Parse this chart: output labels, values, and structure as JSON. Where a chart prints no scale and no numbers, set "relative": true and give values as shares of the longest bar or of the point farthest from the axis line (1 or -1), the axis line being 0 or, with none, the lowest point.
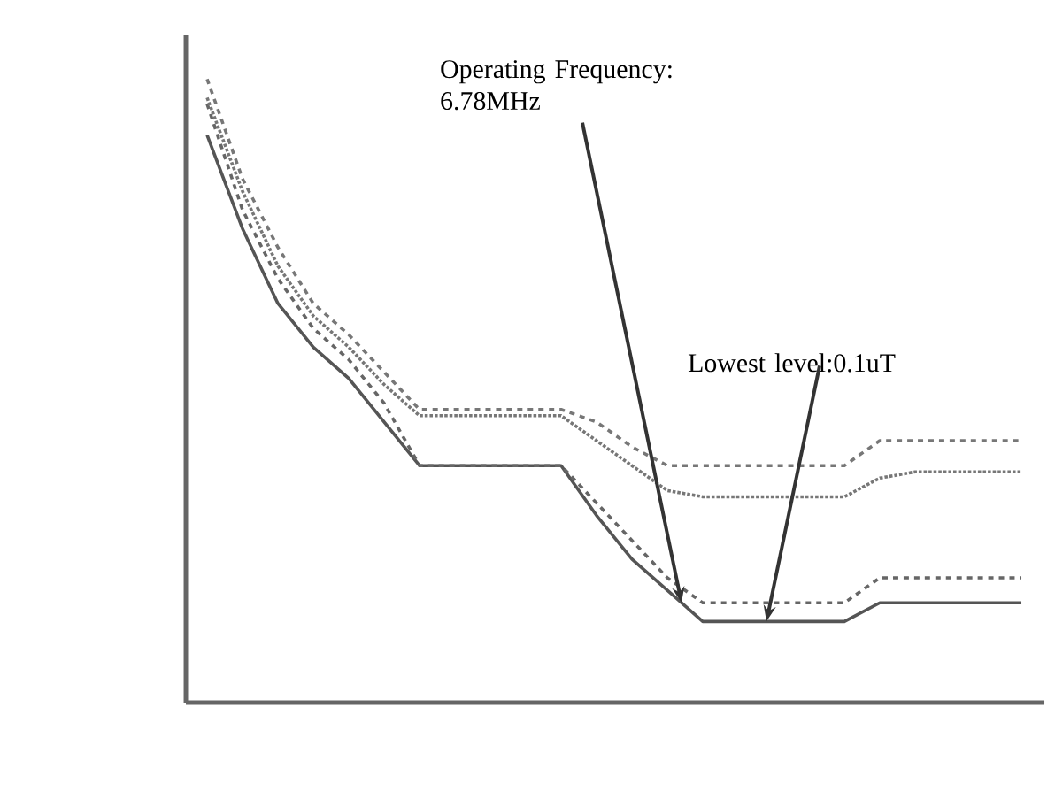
{
  "chart_data": {
    "type": "line",
    "relative": true,
    "categories": [
      null,
      null,
      null,
      null,
      null,
      null,
      null,
      null,
      null,
      null,
      null,
      null,
      null,
      null,
      null,
      null,
      null,
      null,
      null,
      null,
      null,
      null,
      null,
      null
    ],
    "series": [
      {
        "color": "#555555",
        "line_style": "solid",
        "values": [
          0.91,
          0.76,
          0.64,
          0.57,
          0.52,
          0.45,
          0.38,
          0.38,
          0.38,
          0.38,
          0.38,
          0.3,
          0.23,
          0.18,
          0.13,
          0.13,
          0.13,
          0.13,
          0.13,
          0.16,
          0.16,
          0.16,
          0.16,
          0.16
        ]
      },
      {
        "color": "#666666",
        "line_style": "dashed",
        "values": [
          0.96,
          0.79,
          0.68,
          0.6,
          0.55,
          0.48,
          0.38,
          0.38,
          0.38,
          0.38,
          0.38,
          0.32,
          0.26,
          0.2,
          0.16,
          0.16,
          0.16,
          0.16,
          0.16,
          0.2,
          0.2,
          0.2,
          0.2,
          0.2
        ]
      },
      {
        "color": "#777777",
        "line_style": "dashed",
        "values": [
          1.0,
          0.84,
          0.73,
          0.64,
          0.59,
          0.53,
          0.47,
          0.47,
          0.47,
          0.47,
          0.47,
          0.45,
          0.41,
          0.38,
          0.38,
          0.38,
          0.38,
          0.38,
          0.38,
          0.42,
          0.42,
          0.42,
          0.42,
          0.42
        ]
      },
      {
        "color": "#777777",
        "line_style": "dotted",
        "values": [
          0.97,
          0.82,
          0.7,
          0.62,
          0.57,
          0.51,
          0.46,
          0.46,
          0.46,
          0.46,
          0.46,
          0.42,
          0.38,
          0.34,
          0.33,
          0.33,
          0.33,
          0.33,
          0.33,
          0.36,
          0.37,
          0.37,
          0.37,
          0.37
        ]
      }
    ],
    "annotations": [
      "Operating Frequency: 6.78MHz",
      "Lowest level:0.1uT"
    ]
  }
}
